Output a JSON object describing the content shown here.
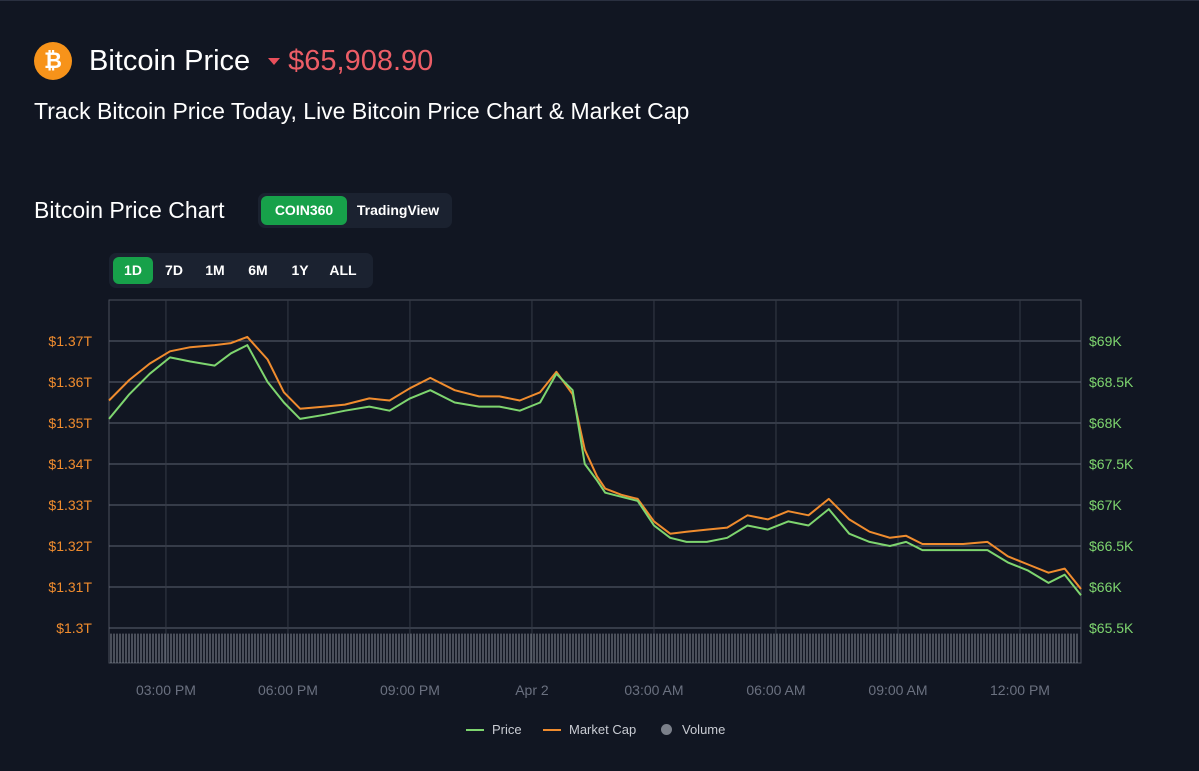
{
  "header": {
    "coin_icon_glyph": "₿",
    "title": "Bitcoin Price",
    "price": "$65,908.90",
    "subtitle": "Track Bitcoin Price Today, Live Bitcoin Price Chart & Market Cap"
  },
  "chart_section": {
    "title": "Bitcoin Price Chart",
    "sources": [
      {
        "label": "COIN360",
        "active": true
      },
      {
        "label": "TradingView",
        "active": false
      }
    ],
    "ranges": [
      {
        "label": "1D",
        "active": true
      },
      {
        "label": "7D",
        "active": false
      },
      {
        "label": "1M",
        "active": false
      },
      {
        "label": "6M",
        "active": false
      },
      {
        "label": "1Y",
        "active": false
      },
      {
        "label": "ALL",
        "active": false
      }
    ]
  },
  "colors": {
    "price": "#7ed56f",
    "market_cap": "#f08c2e",
    "volume": "#9aa0aa",
    "accent": "#17a14a",
    "price_down": "#ec5d66"
  },
  "chart_data": {
    "type": "line",
    "x_ticks": [
      "03:00 PM",
      "06:00 PM",
      "09:00 PM",
      "Apr 2",
      "03:00 AM",
      "06:00 AM",
      "09:00 AM",
      "12:00 PM"
    ],
    "x_tick_hours": [
      3,
      6,
      9,
      12,
      15,
      18,
      21,
      24
    ],
    "x_range_hours": [
      1.6,
      25.5
    ],
    "y_left": {
      "ticks": [
        "$1.3T",
        "$1.31T",
        "$1.32T",
        "$1.33T",
        "$1.34T",
        "$1.35T",
        "$1.36T",
        "$1.37T"
      ],
      "range": [
        1.3,
        1.37
      ]
    },
    "y_right": {
      "ticks": [
        "$65.5K",
        "$66K",
        "$66.5K",
        "$67K",
        "$67.5K",
        "$68K",
        "$68.5K",
        "$69K"
      ],
      "range": [
        65500,
        69000
      ]
    },
    "series": [
      {
        "name": "Price",
        "axis": "right",
        "x": [
          1.6,
          2.1,
          2.6,
          3.1,
          3.6,
          4.2,
          4.6,
          5.0,
          5.5,
          5.9,
          6.3,
          6.9,
          7.4,
          8.0,
          8.5,
          9.0,
          9.5,
          10.1,
          10.7,
          11.2,
          11.7,
          12.2,
          12.6,
          13.0,
          13.3,
          13.6,
          13.8,
          14.2,
          14.6,
          15.0,
          15.4,
          15.8,
          16.3,
          16.8,
          17.3,
          17.8,
          18.3,
          18.8,
          19.3,
          19.8,
          20.3,
          20.8,
          21.2,
          21.6,
          22.0,
          22.6,
          23.2,
          23.7,
          24.2,
          24.7,
          25.1,
          25.5
        ],
        "values": [
          68050,
          68350,
          68600,
          68800,
          68750,
          68700,
          68850,
          68950,
          68500,
          68250,
          68050,
          68100,
          68150,
          68200,
          68150,
          68300,
          68400,
          68250,
          68200,
          68200,
          68150,
          68250,
          68600,
          68400,
          67500,
          67300,
          67150,
          67100,
          67050,
          66750,
          66600,
          66550,
          66550,
          66600,
          66750,
          66700,
          66800,
          66750,
          66950,
          66650,
          66550,
          66500,
          66550,
          66450,
          66450,
          66450,
          66450,
          66300,
          66200,
          66050,
          66150,
          65900
        ]
      },
      {
        "name": "Market Cap",
        "axis": "left",
        "x": [
          1.6,
          2.1,
          2.6,
          3.1,
          3.6,
          4.2,
          4.6,
          5.0,
          5.5,
          5.9,
          6.3,
          6.9,
          7.4,
          8.0,
          8.5,
          9.0,
          9.5,
          10.1,
          10.7,
          11.2,
          11.7,
          12.2,
          12.6,
          13.0,
          13.3,
          13.6,
          13.8,
          14.2,
          14.6,
          15.0,
          15.4,
          15.8,
          16.3,
          16.8,
          17.3,
          17.8,
          18.3,
          18.8,
          19.3,
          19.8,
          20.3,
          20.8,
          21.2,
          21.6,
          22.0,
          22.6,
          23.2,
          23.7,
          24.2,
          24.7,
          25.1,
          25.5
        ],
        "values": [
          1.3555,
          1.3605,
          1.3645,
          1.3675,
          1.3685,
          1.369,
          1.3695,
          1.371,
          1.3655,
          1.3575,
          1.3535,
          1.354,
          1.3545,
          1.356,
          1.3555,
          1.3585,
          1.361,
          1.358,
          1.3565,
          1.3565,
          1.3555,
          1.3575,
          1.3625,
          1.357,
          1.3435,
          1.337,
          1.334,
          1.3325,
          1.3315,
          1.326,
          1.323,
          1.3235,
          1.324,
          1.3245,
          1.3275,
          1.3265,
          1.3285,
          1.3275,
          1.3315,
          1.3265,
          1.3235,
          1.322,
          1.3225,
          1.3205,
          1.3205,
          1.3205,
          1.321,
          1.3175,
          1.3155,
          1.3135,
          1.3145,
          1.3095
        ]
      },
      {
        "name": "Volume",
        "axis": "none",
        "fill": 0.42
      }
    ],
    "legend_position": "bottom-center",
    "grid": true
  }
}
